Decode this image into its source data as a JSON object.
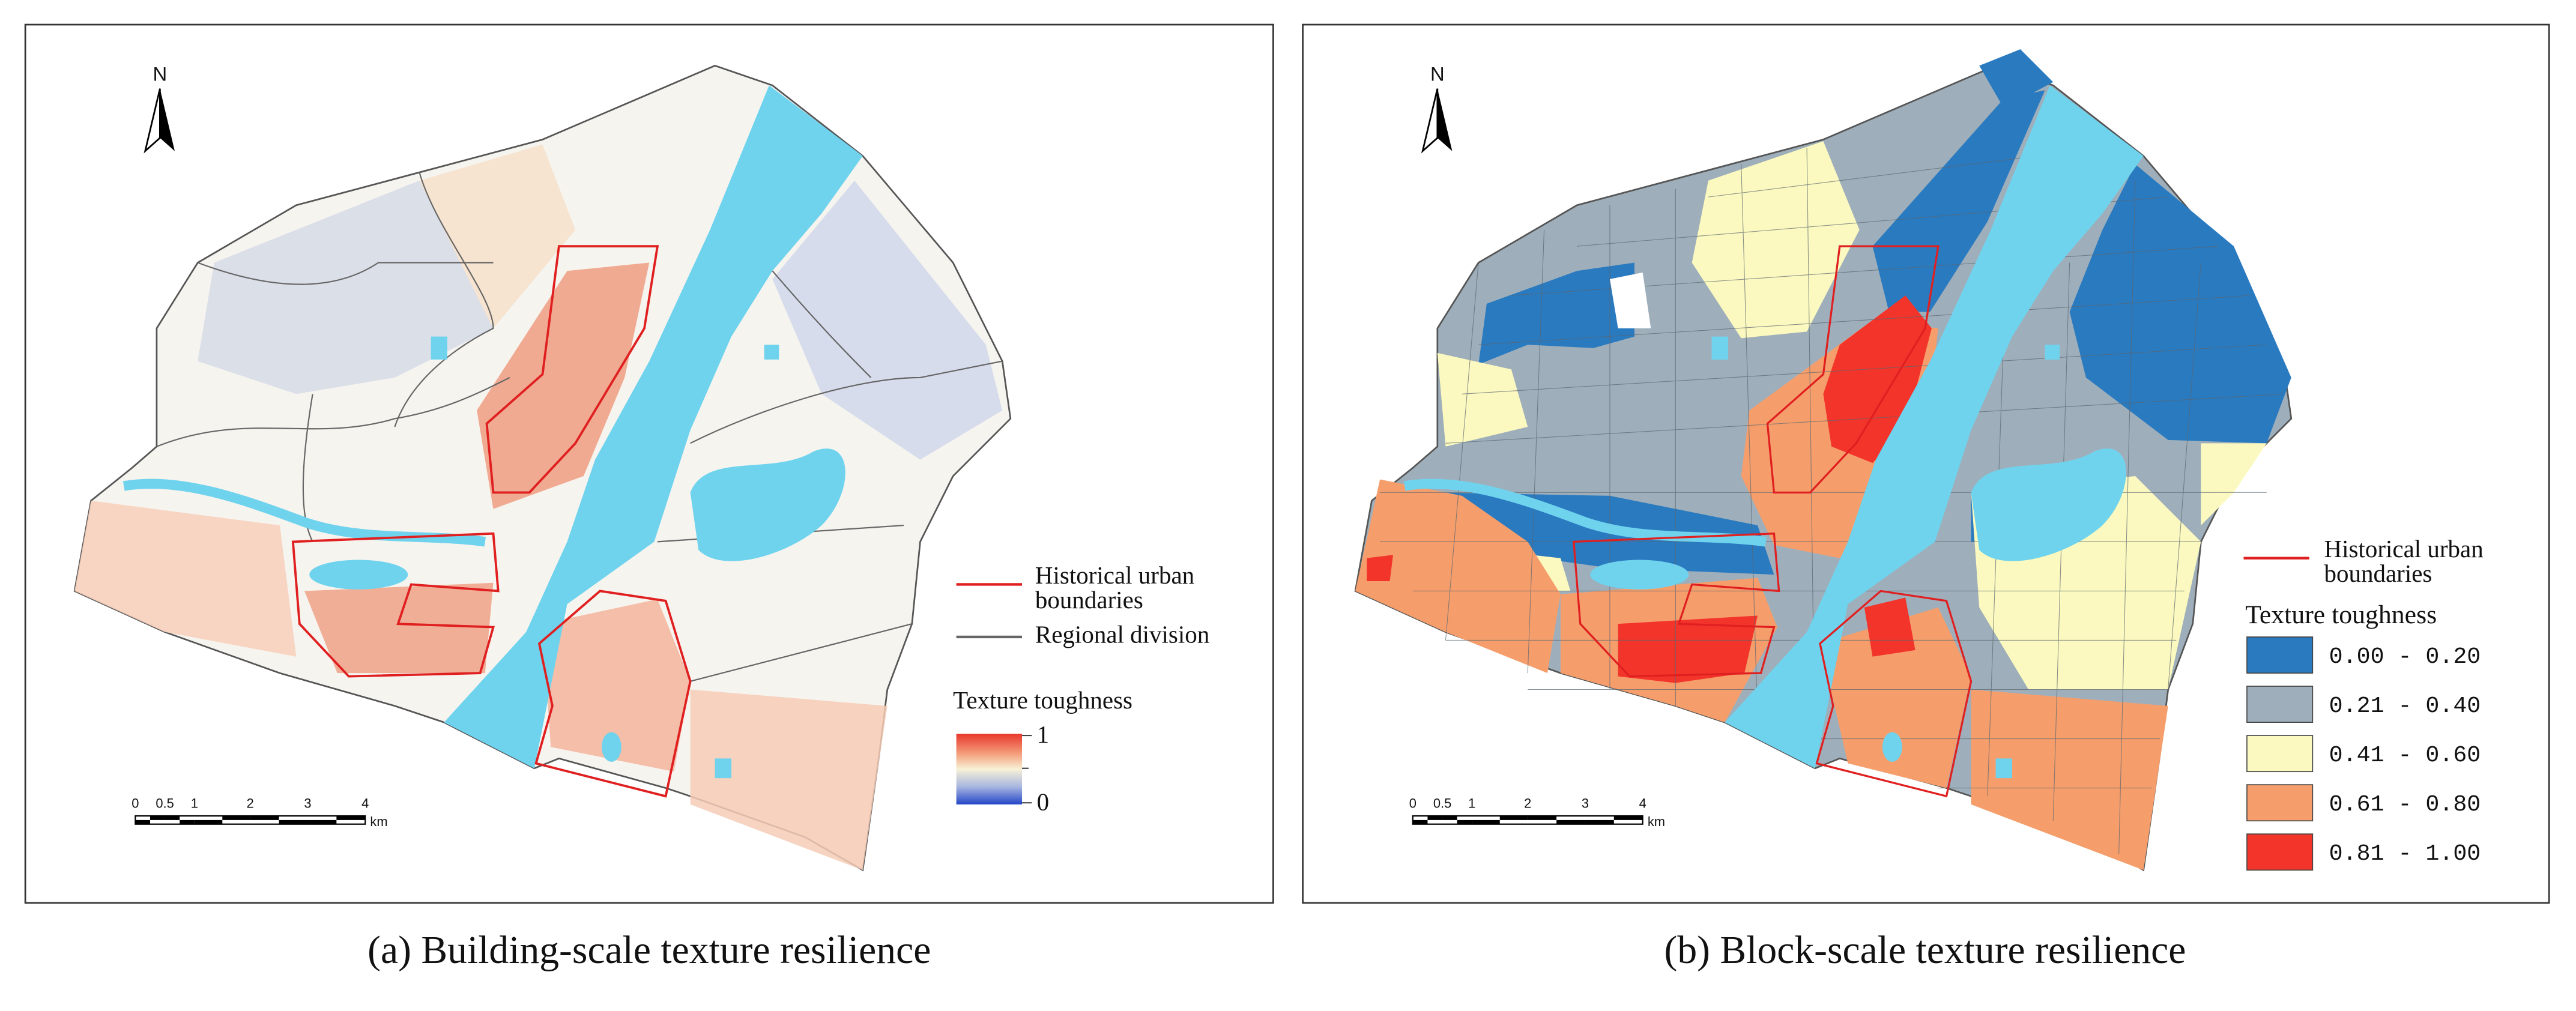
{
  "panels": [
    {
      "caption": "(a) Building-scale texture resilience",
      "north": "N",
      "scale_bar": {
        "labels": [
          "0",
          "0.5",
          "1",
          "2",
          "3",
          "4"
        ],
        "unit": "km"
      },
      "legend": {
        "boundary": [
          "Historical urban",
          "boundaries"
        ],
        "division": "Regional division",
        "title": "Texture toughness",
        "max": "1",
        "min": "0"
      }
    },
    {
      "caption": "(b) Block-scale texture resilience",
      "north": "N",
      "scale_bar": {
        "labels": [
          "0",
          "0.5",
          "1",
          "2",
          "3",
          "4"
        ],
        "unit": "km"
      },
      "legend": {
        "boundary": [
          "Historical urban",
          "boundaries"
        ],
        "title": "Texture toughness",
        "items": [
          {
            "label": "0.00 - 0.20",
            "color": "#2a7ac0"
          },
          {
            "label": "0.21 - 0.40",
            "color": "#9eafbb"
          },
          {
            "label": "0.41 - 0.60",
            "color": "#fbf9bf"
          },
          {
            "label": "0.61 - 0.80",
            "color": "#f59e6c"
          },
          {
            "label": "0.81 - 1.00",
            "color": "#f2342b"
          }
        ]
      }
    }
  ]
}
